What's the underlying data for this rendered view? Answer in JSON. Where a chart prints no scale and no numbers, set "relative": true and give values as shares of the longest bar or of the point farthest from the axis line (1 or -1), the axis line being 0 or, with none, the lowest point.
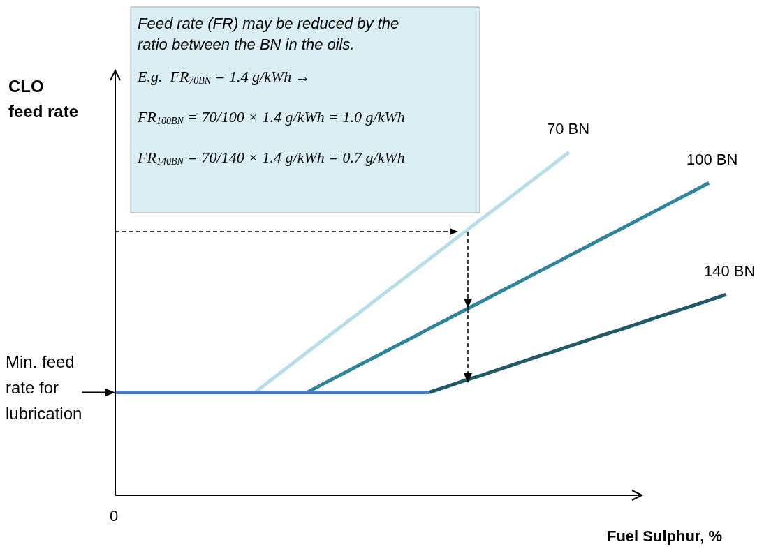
{
  "chart_data": {
    "type": "line",
    "relative": true,
    "xlabel": "Fuel Sulphur, %",
    "ylabel": "CLO\nfeed rate",
    "categories": [
      null,
      null,
      null,
      null,
      null,
      null,
      null,
      null,
      null,
      null,
      null,
      null,
      null,
      null,
      null,
      null,
      null,
      null,
      null,
      null,
      null,
      null,
      null,
      null,
      null,
      null,
      null,
      null,
      null,
      null,
      null,
      null,
      null,
      null,
      null,
      null
    ],
    "series": [
      {
        "name": "70 BN",
        "color": "#b7dde8",
        "values": [
          null,
          null,
          null,
          null,
          null,
          null,
          null,
          null,
          0.3,
          0.339,
          0.378,
          0.417,
          0.456,
          0.494,
          0.533,
          0.572,
          0.611,
          0.65,
          0.689,
          0.728,
          0.767,
          0.806,
          0.844,
          0.883,
          0.922,
          0.961,
          1.0,
          null,
          null,
          null,
          null,
          null,
          null,
          null,
          null,
          null
        ]
      },
      {
        "name": "100 BN",
        "color": "#31849b",
        "values": [
          null,
          null,
          null,
          null,
          null,
          null,
          null,
          null,
          null,
          null,
          null,
          0.3,
          0.327,
          0.353,
          0.38,
          0.406,
          0.433,
          0.459,
          0.486,
          0.512,
          0.539,
          0.565,
          0.592,
          0.618,
          0.645,
          0.671,
          0.698,
          0.724,
          0.751,
          0.777,
          0.804,
          0.83,
          0.857,
          0.883,
          0.91,
          null
        ]
      },
      {
        "name": "140 BN",
        "color": "#215968",
        "values": [
          null,
          null,
          null,
          null,
          null,
          null,
          null,
          null,
          null,
          null,
          null,
          null,
          null,
          null,
          null,
          null,
          null,
          null,
          0.3,
          0.317,
          0.334,
          0.35,
          0.367,
          0.384,
          0.401,
          0.417,
          0.434,
          0.451,
          0.468,
          0.484,
          0.501,
          0.518,
          0.535,
          0.551,
          0.568,
          0.585
        ]
      },
      {
        "color": "#4a7ebb",
        "values": [
          0.3,
          0.3,
          0.3,
          0.3,
          0.3,
          0.3,
          0.3,
          0.3,
          0.3,
          0.3,
          0.3,
          0.3,
          0.3,
          0.3,
          0.3,
          0.3,
          0.3,
          0.3,
          0.3,
          null,
          null,
          null,
          null,
          null,
          null,
          null,
          null,
          null,
          null,
          null,
          null,
          null,
          null,
          null,
          null,
          null
        ]
      }
    ],
    "annotations": [
      "Feed rate (FR) may be reduced by the ratio between the BN in the oils.",
      "E.g.  FR$_{70BN}$ = 1.4 g/kWh →",
      "FR$_{100BN}$ = 70/100 × 1.4 g/kWh = 1.0 g/kWh",
      "FR$_{140BN}$ = 70/140 × 1.4 g/kWh = 0.7 g/kWh",
      "Min. feed\nrate for\nlubrication",
      "0"
    ],
    "legend": false,
    "grid": false,
    "marker": "none",
    "line_style": "solid"
  }
}
